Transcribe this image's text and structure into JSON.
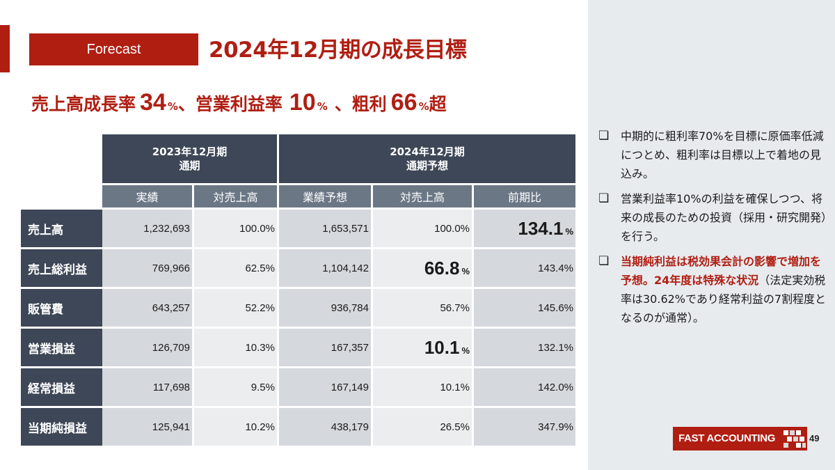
{
  "header": {
    "tag": "Forecast",
    "title": "2024年12月期の成長目標"
  },
  "headline": {
    "part1": "売上高成長率",
    "val1": "34",
    "unit1": "%",
    "part2": "、営業利益率",
    "val2": "10",
    "unit2": "%",
    "part3": "、粗利",
    "val3": "66",
    "unit3": "%",
    "part4": "超"
  },
  "table": {
    "period_2023": "2023年12月期",
    "period_2023_sub": "通期",
    "period_2024": "2024年12月期",
    "period_2024_sub": "通期予想",
    "col_actual": "実績",
    "col_ratio_2023": "対売上高",
    "col_forecast": "業績予想",
    "col_ratio_2024": "対売上高",
    "col_yoy": "前期比",
    "percent_unit": "%",
    "rows": [
      {
        "label": "売上高",
        "actual": "1,232,693",
        "ratio2023": "100.0%",
        "forecast": "1,653,571",
        "ratio2024": "100.0%",
        "yoy": "134.1"
      },
      {
        "label": "売上総利益",
        "actual": "769,966",
        "ratio2023": "62.5%",
        "forecast": "1,104,142",
        "ratio2024": "66.8",
        "yoy": "143.4%"
      },
      {
        "label": "販管費",
        "actual": "643,257",
        "ratio2023": "52.2%",
        "forecast": "936,784",
        "ratio2024": "56.7%",
        "yoy": "145.6%"
      },
      {
        "label": "営業損益",
        "actual": "126,709",
        "ratio2023": "10.3%",
        "forecast": "167,357",
        "ratio2024": "10.1",
        "yoy": "132.1%"
      },
      {
        "label": "経常損益",
        "actual": "117,698",
        "ratio2023": "9.5%",
        "forecast": "167,149",
        "ratio2024": "10.1%",
        "yoy": "142.0%"
      },
      {
        "label": "当期純損益",
        "actual": "125,941",
        "ratio2023": "10.2%",
        "forecast": "438,179",
        "ratio2024": "26.5%",
        "yoy": "347.9%"
      }
    ]
  },
  "bullets": {
    "marker": "❏",
    "b1": "中期的に粗利率70%を目標に原価率低減につとめ、粗利率は目標以上で着地の見込み。",
    "b2": "営業利益率10%の利益を確保しつつ、将来の成長のための投資（採用・研究開発）を行う。",
    "b3_red": "当期純利益は税効果会計の影響で増加を予想。24年度は特殊な状況",
    "b3_rest": "（法定実効税率は30.62%であり経常利益の7割程度となるのが通常）。"
  },
  "footer": {
    "logo": "FAST ACCOUNTING",
    "page": "49"
  },
  "colors": {
    "brand_red": "#b01e12",
    "header_navy": "#3d4757",
    "header_grey": "#6b7785",
    "panel_bg": "#e8ebee"
  }
}
